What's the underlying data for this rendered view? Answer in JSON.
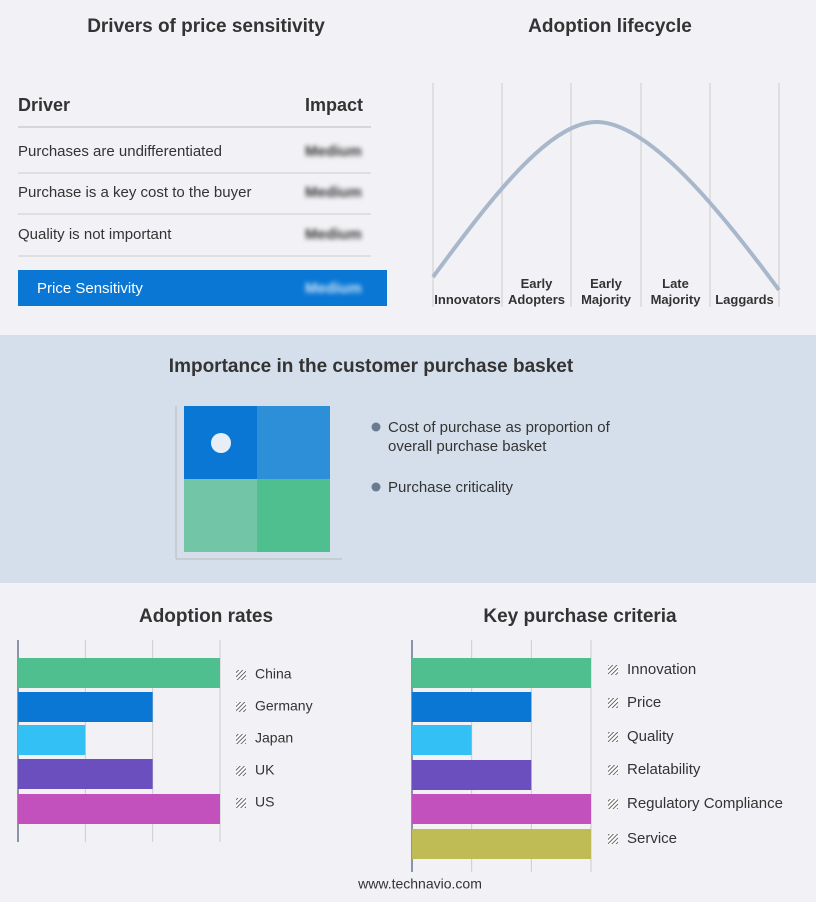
{
  "drivers": {
    "title": "Drivers of price sensitivity",
    "header": [
      "Driver",
      "Impact"
    ],
    "rows": [
      [
        "Purchases are undifferentiated",
        "Medium"
      ],
      [
        "Purchase is a key cost to the buyer",
        "Medium"
      ],
      [
        "Quality is not important",
        "Medium"
      ]
    ],
    "summary": [
      "Price Sensitivity",
      "Medium"
    ]
  },
  "lifecycle": {
    "title": "Adoption lifecycle",
    "stages": [
      "Innovators",
      "Early Adopters",
      "Early Majority",
      "Late Majority",
      "Laggards"
    ]
  },
  "basket": {
    "title": "Importance in the customer purchase basket",
    "legend": [
      "Cost of purchase as proportion of overall purchase basket",
      "Purchase criticality"
    ]
  },
  "chart_data": [
    {
      "type": "hbar",
      "title": "Adoption rates",
      "categories": [
        "China",
        "Germany",
        "Japan",
        "UK",
        "US"
      ],
      "values": [
        3,
        2,
        1,
        2,
        3
      ],
      "colors": [
        "#4fbf8f",
        "#0a77d5",
        "#33c1f5",
        "#6b4fbf",
        "#c251be"
      ],
      "xlim": [
        0,
        3
      ],
      "xticks": [
        0,
        1,
        2,
        3
      ],
      "grid": true
    },
    {
      "type": "hbar",
      "title": "Key purchase criteria",
      "categories": [
        "Innovation",
        "Price",
        "Quality",
        "Relatability",
        "Regulatory Compliance",
        "Service"
      ],
      "values": [
        3,
        2,
        1,
        2,
        3,
        3
      ],
      "colors": [
        "#4fbf8f",
        "#0a77d5",
        "#33c1f5",
        "#6b4fbf",
        "#c251be",
        "#c0bc55"
      ],
      "xlim": [
        0,
        3
      ],
      "xticks": [
        0,
        1,
        2,
        3
      ],
      "grid": true
    }
  ],
  "footer": "www.technavio.com"
}
